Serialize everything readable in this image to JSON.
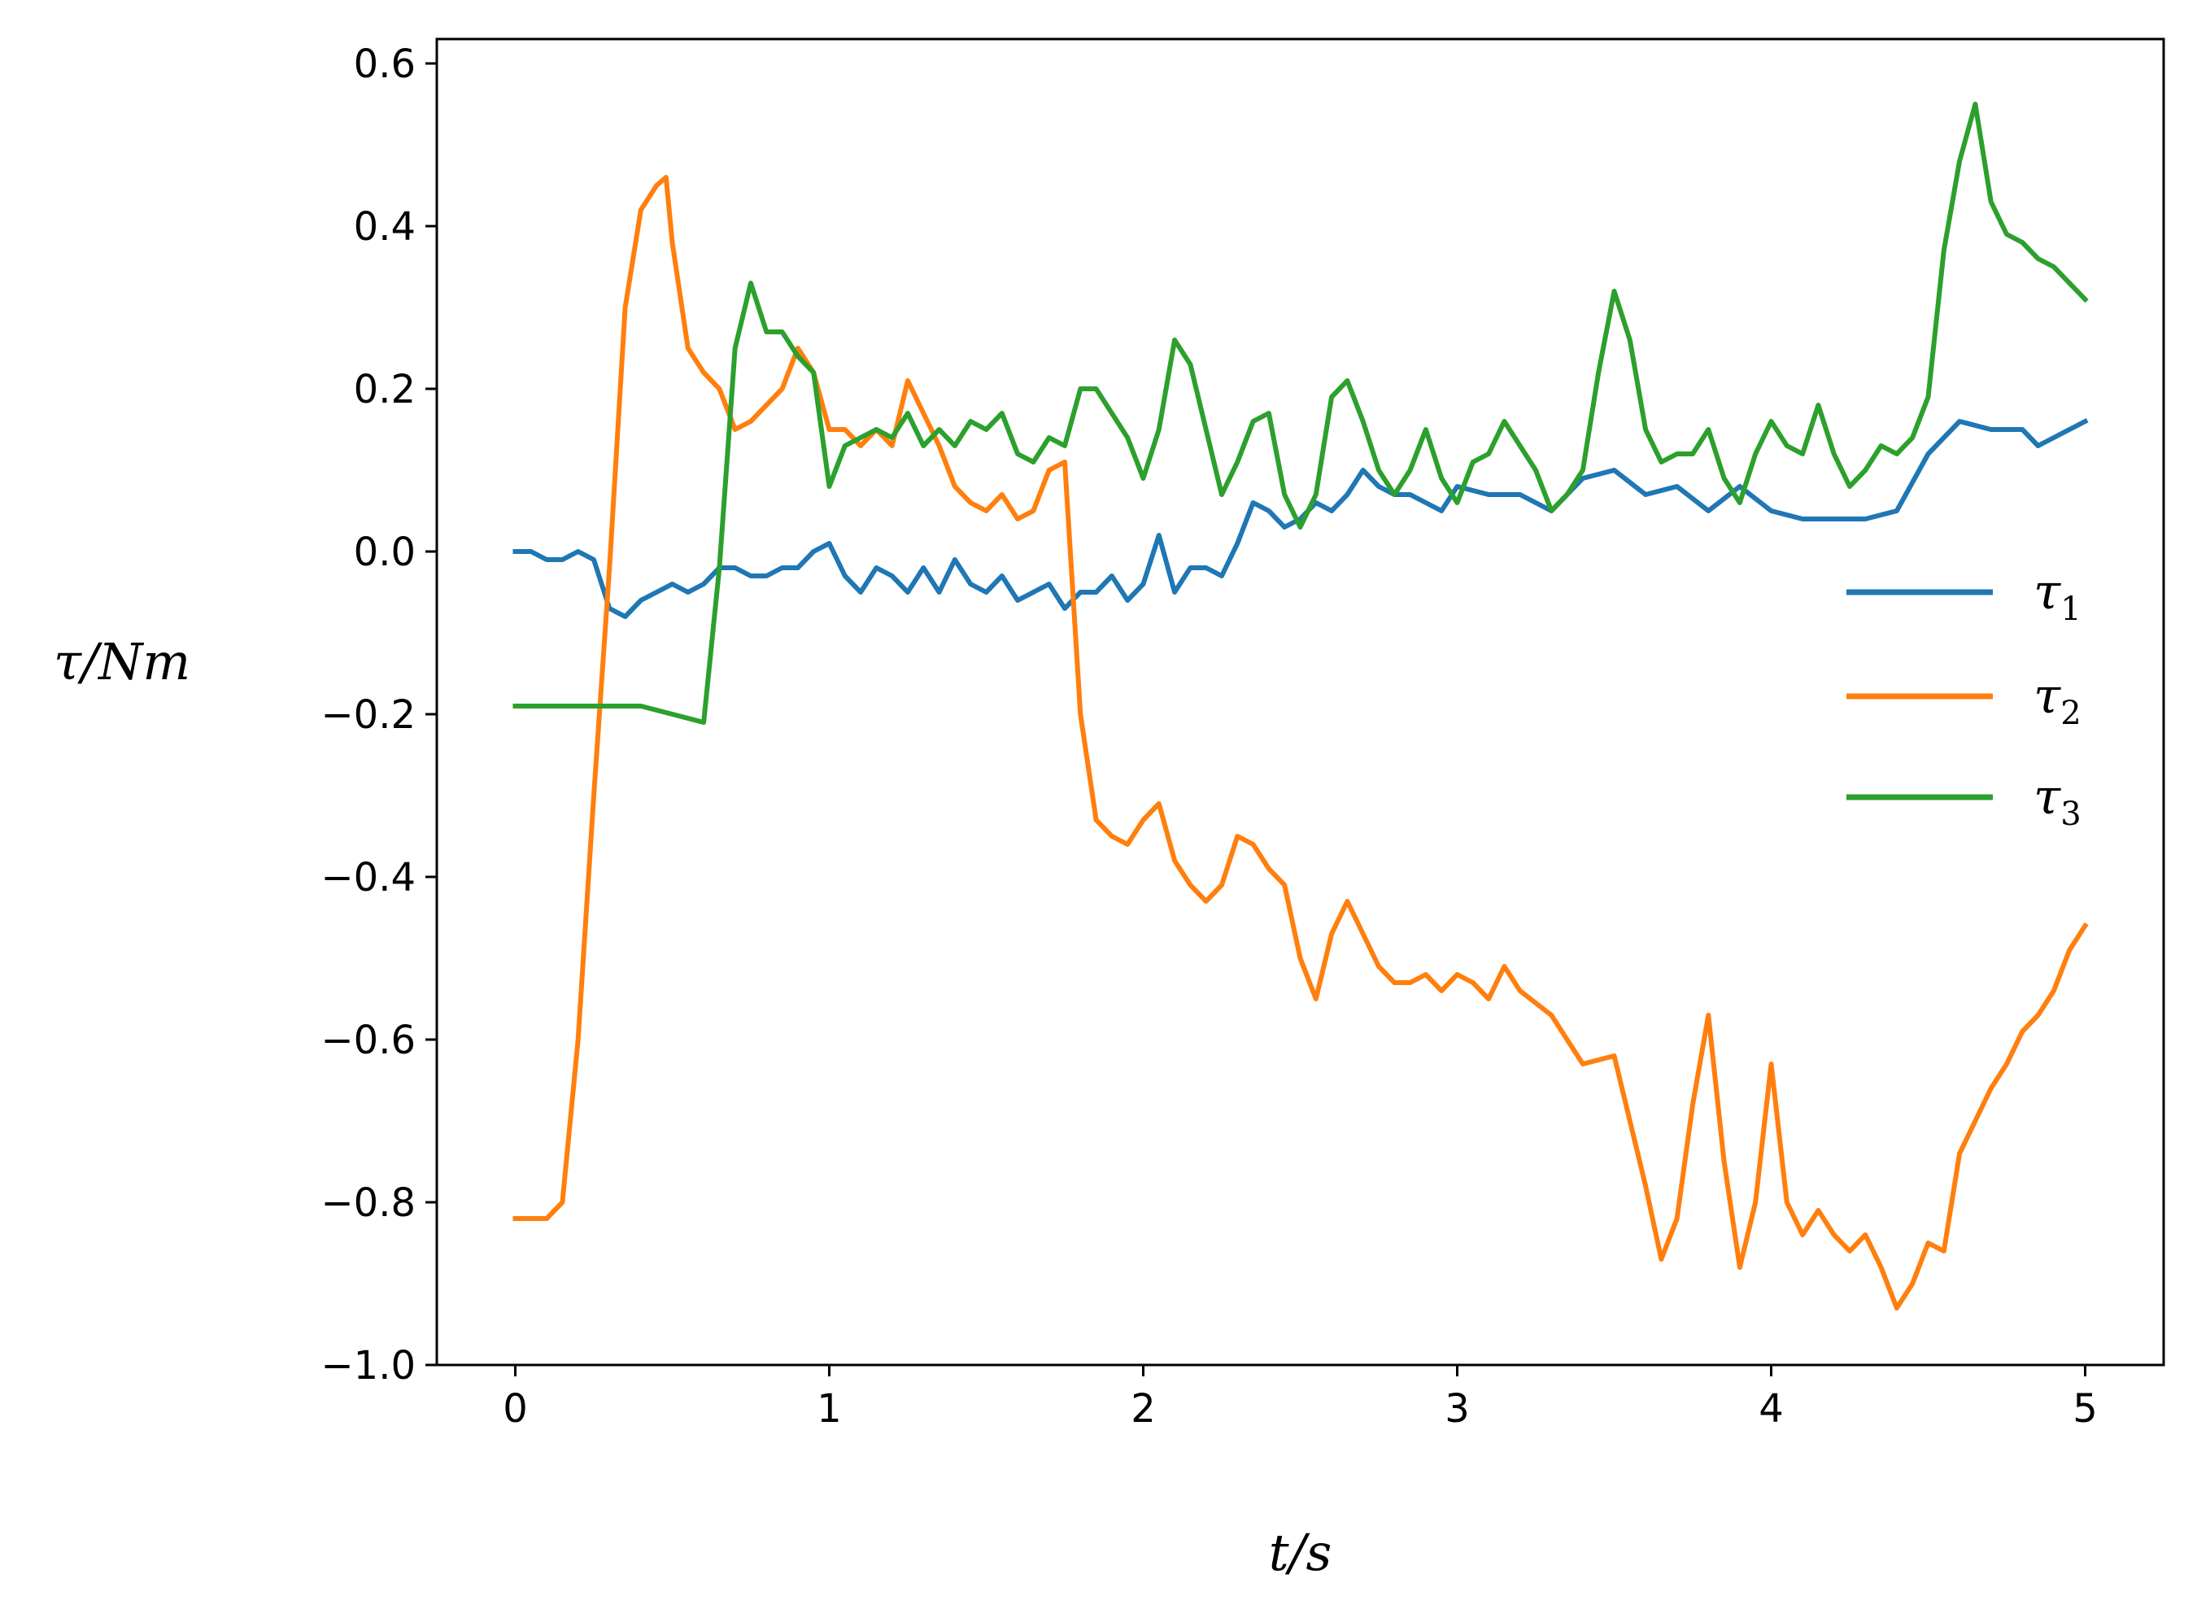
{
  "chart_data": {
    "type": "line",
    "title": "",
    "xlabel": "t/s",
    "ylabel": "τ/Nm",
    "xlim": [
      -0.25,
      5.25
    ],
    "ylim": [
      -1.0,
      0.63
    ],
    "xticks": [
      0,
      1,
      2,
      3,
      4,
      5
    ],
    "yticks": [
      0.6,
      0.4,
      0.2,
      0.0,
      -0.2,
      -0.4,
      -0.6,
      -0.8,
      -1.0
    ],
    "xtick_labels": [
      "0",
      "1",
      "2",
      "3",
      "4",
      "5"
    ],
    "ytick_labels": [
      "0.6",
      "0.4",
      "0.2",
      "0.0",
      "−0.2",
      "−0.4",
      "−0.6",
      "−0.8",
      "−1.0"
    ],
    "grid": false,
    "legend_position": "center-right",
    "series": [
      {
        "name": "τ1",
        "legend_base": "τ",
        "legend_sub": "1",
        "color": "#1f77b4",
        "x": [
          0,
          0.05,
          0.1,
          0.15,
          0.2,
          0.25,
          0.3,
          0.35,
          0.4,
          0.45,
          0.5,
          0.55,
          0.6,
          0.65,
          0.7,
          0.75,
          0.8,
          0.85,
          0.9,
          0.95,
          1.0,
          1.05,
          1.1,
          1.15,
          1.2,
          1.25,
          1.3,
          1.35,
          1.4,
          1.45,
          1.5,
          1.55,
          1.6,
          1.65,
          1.7,
          1.75,
          1.8,
          1.85,
          1.9,
          1.95,
          2.0,
          2.05,
          2.1,
          2.15,
          2.2,
          2.25,
          2.3,
          2.35,
          2.4,
          2.45,
          2.5,
          2.55,
          2.6,
          2.65,
          2.7,
          2.75,
          2.8,
          2.85,
          2.9,
          2.95,
          3.0,
          3.1,
          3.2,
          3.3,
          3.4,
          3.5,
          3.6,
          3.7,
          3.8,
          3.9,
          4.0,
          4.1,
          4.2,
          4.3,
          4.4,
          4.5,
          4.6,
          4.7,
          4.8,
          4.85,
          4.9,
          4.95,
          5.0
        ],
        "y": [
          0.0,
          0.0,
          -0.01,
          -0.01,
          0.0,
          -0.01,
          -0.07,
          -0.08,
          -0.06,
          -0.05,
          -0.04,
          -0.05,
          -0.04,
          -0.02,
          -0.02,
          -0.03,
          -0.03,
          -0.02,
          -0.02,
          0.0,
          0.01,
          -0.03,
          -0.05,
          -0.02,
          -0.03,
          -0.05,
          -0.02,
          -0.05,
          -0.01,
          -0.04,
          -0.05,
          -0.03,
          -0.06,
          -0.05,
          -0.04,
          -0.07,
          -0.05,
          -0.05,
          -0.03,
          -0.06,
          -0.04,
          0.02,
          -0.05,
          -0.02,
          -0.02,
          -0.03,
          0.01,
          0.06,
          0.05,
          0.03,
          0.04,
          0.06,
          0.05,
          0.07,
          0.1,
          0.08,
          0.07,
          0.07,
          0.06,
          0.05,
          0.08,
          0.07,
          0.07,
          0.05,
          0.09,
          0.1,
          0.07,
          0.08,
          0.05,
          0.08,
          0.05,
          0.04,
          0.04,
          0.04,
          0.05,
          0.12,
          0.16,
          0.15,
          0.15,
          0.13,
          0.14,
          0.15,
          0.16
        ]
      },
      {
        "name": "τ2",
        "legend_base": "τ",
        "legend_sub": "2",
        "color": "#ff7f0e",
        "x": [
          0,
          0.1,
          0.15,
          0.2,
          0.25,
          0.3,
          0.35,
          0.4,
          0.45,
          0.48,
          0.5,
          0.55,
          0.6,
          0.65,
          0.7,
          0.75,
          0.8,
          0.85,
          0.9,
          0.95,
          1.0,
          1.05,
          1.1,
          1.15,
          1.2,
          1.25,
          1.3,
          1.35,
          1.4,
          1.45,
          1.5,
          1.55,
          1.6,
          1.65,
          1.7,
          1.75,
          1.8,
          1.85,
          1.9,
          1.95,
          2.0,
          2.05,
          2.1,
          2.15,
          2.2,
          2.25,
          2.3,
          2.35,
          2.4,
          2.45,
          2.5,
          2.55,
          2.6,
          2.65,
          2.7,
          2.75,
          2.8,
          2.85,
          2.9,
          2.95,
          3.0,
          3.05,
          3.1,
          3.15,
          3.2,
          3.3,
          3.4,
          3.5,
          3.55,
          3.6,
          3.65,
          3.7,
          3.75,
          3.8,
          3.85,
          3.9,
          3.95,
          4.0,
          4.05,
          4.1,
          4.15,
          4.2,
          4.25,
          4.3,
          4.35,
          4.4,
          4.45,
          4.5,
          4.55,
          4.6,
          4.65,
          4.7,
          4.75,
          4.8,
          4.85,
          4.9,
          4.95,
          5.0
        ],
        "y": [
          -0.82,
          -0.82,
          -0.8,
          -0.6,
          -0.3,
          -0.02,
          0.3,
          0.42,
          0.45,
          0.46,
          0.38,
          0.25,
          0.22,
          0.2,
          0.15,
          0.16,
          0.18,
          0.2,
          0.25,
          0.22,
          0.15,
          0.15,
          0.13,
          0.15,
          0.13,
          0.21,
          0.17,
          0.13,
          0.08,
          0.06,
          0.05,
          0.07,
          0.04,
          0.05,
          0.1,
          0.11,
          -0.2,
          -0.33,
          -0.35,
          -0.36,
          -0.33,
          -0.31,
          -0.38,
          -0.41,
          -0.43,
          -0.41,
          -0.35,
          -0.36,
          -0.39,
          -0.41,
          -0.5,
          -0.55,
          -0.47,
          -0.43,
          -0.47,
          -0.51,
          -0.53,
          -0.53,
          -0.52,
          -0.54,
          -0.52,
          -0.53,
          -0.55,
          -0.51,
          -0.54,
          -0.57,
          -0.63,
          -0.62,
          -0.7,
          -0.78,
          -0.87,
          -0.82,
          -0.68,
          -0.57,
          -0.75,
          -0.88,
          -0.8,
          -0.63,
          -0.8,
          -0.84,
          -0.81,
          -0.84,
          -0.86,
          -0.84,
          -0.88,
          -0.93,
          -0.9,
          -0.85,
          -0.86,
          -0.74,
          -0.7,
          -0.66,
          -0.63,
          -0.59,
          -0.57,
          -0.54,
          -0.49,
          -0.46
        ]
      },
      {
        "name": "τ3",
        "legend_base": "τ",
        "legend_sub": "3",
        "color": "#2ca02c",
        "x": [
          0,
          0.2,
          0.4,
          0.5,
          0.6,
          0.65,
          0.7,
          0.75,
          0.8,
          0.85,
          0.9,
          0.95,
          1.0,
          1.05,
          1.1,
          1.15,
          1.2,
          1.25,
          1.3,
          1.35,
          1.4,
          1.45,
          1.5,
          1.55,
          1.6,
          1.65,
          1.7,
          1.75,
          1.8,
          1.85,
          1.9,
          1.95,
          2.0,
          2.05,
          2.1,
          2.15,
          2.2,
          2.25,
          2.3,
          2.35,
          2.4,
          2.45,
          2.5,
          2.55,
          2.6,
          2.65,
          2.7,
          2.75,
          2.8,
          2.85,
          2.9,
          2.95,
          3.0,
          3.05,
          3.1,
          3.15,
          3.2,
          3.25,
          3.3,
          3.35,
          3.4,
          3.45,
          3.5,
          3.55,
          3.6,
          3.65,
          3.7,
          3.75,
          3.8,
          3.85,
          3.9,
          3.95,
          4.0,
          4.05,
          4.1,
          4.15,
          4.2,
          4.25,
          4.3,
          4.35,
          4.4,
          4.45,
          4.5,
          4.55,
          4.6,
          4.65,
          4.7,
          4.75,
          4.8,
          4.85,
          4.9,
          4.95,
          5.0
        ],
        "y": [
          -0.19,
          -0.19,
          -0.19,
          -0.2,
          -0.21,
          -0.02,
          0.25,
          0.33,
          0.27,
          0.27,
          0.24,
          0.22,
          0.08,
          0.13,
          0.14,
          0.15,
          0.14,
          0.17,
          0.13,
          0.15,
          0.13,
          0.16,
          0.15,
          0.17,
          0.12,
          0.11,
          0.14,
          0.13,
          0.2,
          0.2,
          0.17,
          0.14,
          0.09,
          0.15,
          0.26,
          0.23,
          0.15,
          0.07,
          0.11,
          0.16,
          0.17,
          0.07,
          0.03,
          0.07,
          0.19,
          0.21,
          0.16,
          0.1,
          0.07,
          0.1,
          0.15,
          0.09,
          0.06,
          0.11,
          0.12,
          0.16,
          0.13,
          0.1,
          0.05,
          0.07,
          0.1,
          0.22,
          0.32,
          0.26,
          0.15,
          0.11,
          0.12,
          0.12,
          0.15,
          0.09,
          0.06,
          0.12,
          0.16,
          0.13,
          0.12,
          0.18,
          0.12,
          0.08,
          0.1,
          0.13,
          0.12,
          0.14,
          0.19,
          0.37,
          0.48,
          0.55,
          0.43,
          0.39,
          0.38,
          0.36,
          0.35,
          0.33,
          0.31
        ]
      }
    ]
  }
}
